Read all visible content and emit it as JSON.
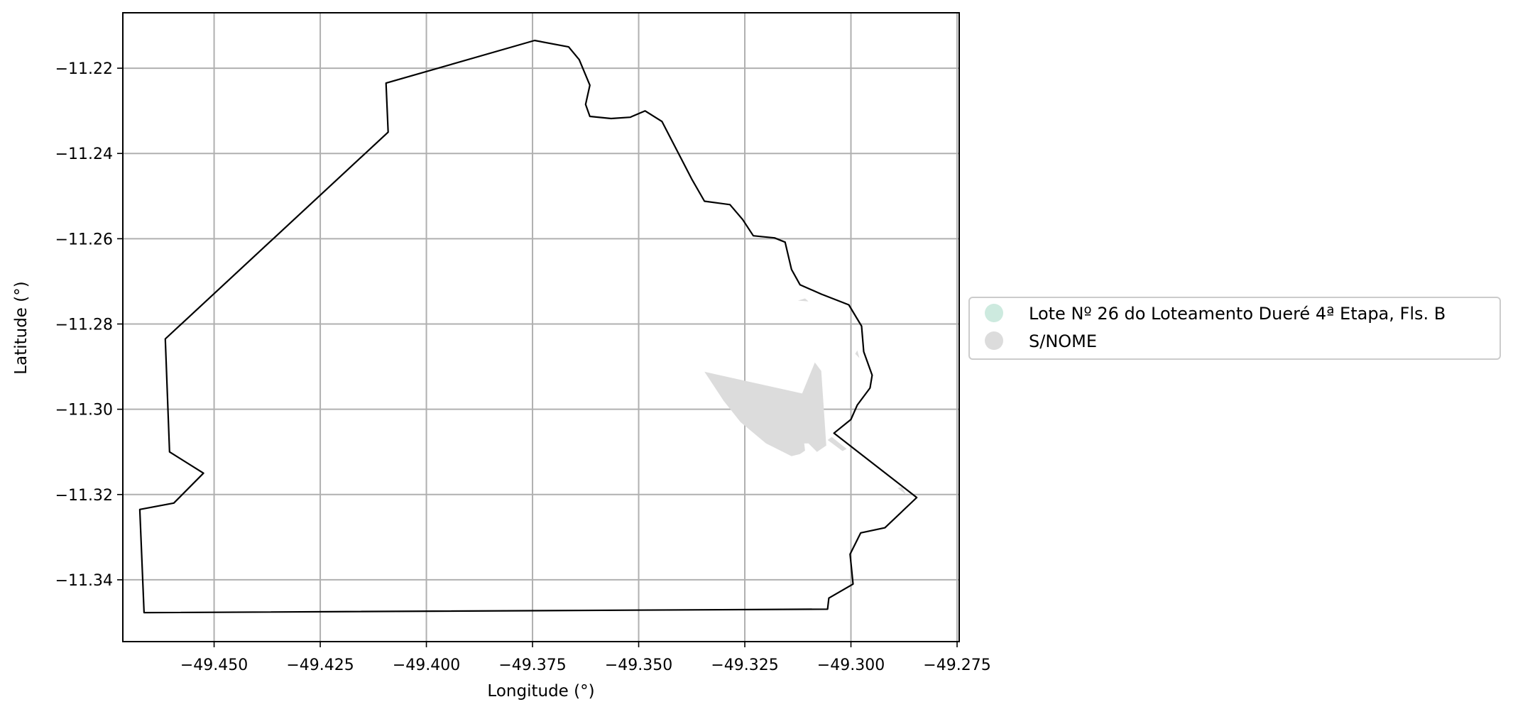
{
  "chart_data": {
    "type": "map",
    "xlabel": "Longitude (°)",
    "ylabel": "Latitude (°)",
    "xlim": [
      -49.4715,
      -49.2745
    ],
    "ylim": [
      -11.3545,
      -11.207
    ],
    "xticks": [
      -49.45,
      -49.425,
      -49.4,
      -49.375,
      -49.35,
      -49.325,
      -49.3,
      -49.275
    ],
    "xtick_labels": [
      "−49.450",
      "−49.425",
      "−49.400",
      "−49.375",
      "−49.350",
      "−49.325",
      "−49.300",
      "−49.275"
    ],
    "yticks": [
      -11.22,
      -11.24,
      -11.26,
      -11.28,
      -11.3,
      -11.32,
      -11.34
    ],
    "ytick_labels": [
      "−11.22",
      "−11.24",
      "−11.26",
      "−11.28",
      "−11.30",
      "−11.32",
      "−11.34"
    ],
    "grid": true,
    "legend_position": "center-right, outside plot",
    "legend": [
      {
        "label": "Lote Nº 26 do Loteamento Dueré 4ª Etapa, Fls. B",
        "color": "#cdeadf"
      },
      {
        "label": "S/NOME",
        "color": "#dcdcdc"
      }
    ],
    "boundary": {
      "color": "#000000",
      "coords": [
        [
          -49.4665,
          -11.3477
        ],
        [
          -49.3055,
          -11.3469
        ],
        [
          -49.3052,
          -11.3443
        ],
        [
          -49.2995,
          -11.341
        ],
        [
          -49.3002,
          -11.334
        ],
        [
          -49.2977,
          -11.329
        ],
        [
          -49.292,
          -11.3278
        ],
        [
          -49.2845,
          -11.3207
        ],
        [
          -49.304,
          -11.3056
        ],
        [
          -49.3,
          -11.3024
        ],
        [
          -49.2985,
          -11.299
        ],
        [
          -49.2955,
          -11.295
        ],
        [
          -49.295,
          -11.292
        ],
        [
          -49.297,
          -11.2865
        ],
        [
          -49.2975,
          -11.2805
        ],
        [
          -49.3005,
          -11.2755
        ],
        [
          -49.307,
          -11.273
        ],
        [
          -49.312,
          -11.2708
        ],
        [
          -49.314,
          -11.2672
        ],
        [
          -49.3155,
          -11.2608
        ],
        [
          -49.318,
          -11.2598
        ],
        [
          -49.323,
          -11.2593
        ],
        [
          -49.3255,
          -11.2555
        ],
        [
          -49.3285,
          -11.252
        ],
        [
          -49.3345,
          -11.2512
        ],
        [
          -49.3375,
          -11.246
        ],
        [
          -49.3445,
          -11.2325
        ],
        [
          -49.3485,
          -11.23
        ],
        [
          -49.352,
          -11.2315
        ],
        [
          -49.3565,
          -11.2318
        ],
        [
          -49.3615,
          -11.2313
        ],
        [
          -49.3625,
          -11.2285
        ],
        [
          -49.3615,
          -11.224
        ],
        [
          -49.364,
          -11.218
        ],
        [
          -49.3665,
          -11.215
        ],
        [
          -49.3745,
          -11.2135
        ],
        [
          -49.4095,
          -11.2235
        ],
        [
          -49.409,
          -11.235
        ],
        [
          -49.4615,
          -11.2835
        ],
        [
          -49.4605,
          -11.31
        ],
        [
          -49.4525,
          -11.315
        ],
        [
          -49.4595,
          -11.322
        ],
        [
          -49.4675,
          -11.3235
        ]
      ]
    },
    "snome_polygons": [
      {
        "color": "#dcdcdc",
        "coords": [
          [
            -49.3345,
            -11.2912
          ],
          [
            -49.3115,
            -11.2963
          ],
          [
            -49.3085,
            -11.289
          ],
          [
            -49.307,
            -11.291
          ],
          [
            -49.3058,
            -11.3085
          ],
          [
            -49.308,
            -11.31
          ],
          [
            -49.31,
            -11.308
          ],
          [
            -49.311,
            -11.308
          ],
          [
            -49.3108,
            -11.3097
          ],
          [
            -49.312,
            -11.3105
          ],
          [
            -49.314,
            -11.311
          ],
          [
            -49.32,
            -11.308
          ],
          [
            -49.326,
            -11.303
          ],
          [
            -49.33,
            -11.298
          ]
        ]
      },
      {
        "color": "#dcdcdc",
        "coords": [
          [
            -49.3055,
            -11.3072
          ],
          [
            -49.302,
            -11.3098
          ],
          [
            -49.301,
            -11.3093
          ],
          [
            -49.3045,
            -11.3065
          ]
        ]
      },
      {
        "color": "#dcdcdc",
        "coords": [
          [
            -49.3125,
            -11.2745
          ],
          [
            -49.31,
            -11.2747
          ],
          [
            -49.3108,
            -11.274
          ]
        ]
      },
      {
        "color": "#dcdcdc",
        "coords": [
          [
            -49.299,
            -11.287
          ],
          [
            -49.298,
            -11.288
          ],
          [
            -49.2985,
            -11.2862
          ]
        ]
      },
      {
        "color": "#dcdcdc",
        "coords": [
          [
            -49.289,
            -11.3185
          ],
          [
            -49.287,
            -11.32
          ],
          [
            -49.288,
            -11.3182
          ]
        ]
      }
    ]
  }
}
